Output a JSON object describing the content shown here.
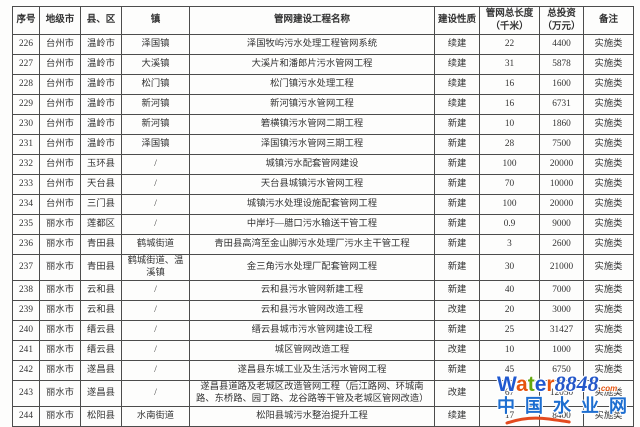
{
  "table": {
    "headers": [
      "序号",
      "地级市",
      "县、区",
      "镇",
      "管网建设工程名称",
      "建设性质",
      "管网总长度\n（千米）",
      "总投资\n（万元）",
      "备注"
    ],
    "rows": [
      [
        "226",
        "台州市",
        "温岭市",
        "泽国镇",
        "泽国牧屿污水处理工程管网系统",
        "续建",
        "22",
        "4400",
        "实施类"
      ],
      [
        "227",
        "台州市",
        "温岭市",
        "大溪镇",
        "大溪片和潘郎片污水管网工程",
        "续建",
        "31",
        "5878",
        "实施类"
      ],
      [
        "228",
        "台州市",
        "温岭市",
        "松门镇",
        "松门镇污水处理工程",
        "续建",
        "16",
        "1600",
        "实施类"
      ],
      [
        "229",
        "台州市",
        "温岭市",
        "新河镇",
        "新河镇污水管网工程",
        "续建",
        "16",
        "6731",
        "实施类"
      ],
      [
        "230",
        "台州市",
        "温岭市",
        "新河镇",
        "箬横镇污水管网二期工程",
        "新建",
        "10",
        "1860",
        "实施类"
      ],
      [
        "231",
        "台州市",
        "温岭市",
        "泽国镇",
        "泽国镇污水管网三期工程",
        "新建",
        "28",
        "7500",
        "实施类"
      ],
      [
        "232",
        "台州市",
        "玉环县",
        "/",
        "城镇污水配套管网建设",
        "新建",
        "100",
        "20000",
        "实施类"
      ],
      [
        "233",
        "台州市",
        "天台县",
        "/",
        "天台县城镇污水管网工程",
        "新建",
        "70",
        "10000",
        "实施类"
      ],
      [
        "234",
        "台州市",
        "三门县",
        "/",
        "城镇污水处理设施配套管网工程",
        "新建",
        "100",
        "20000",
        "实施类"
      ],
      [
        "235",
        "丽水市",
        "莲都区",
        "/",
        "中岸圩—腊口污水输送干管工程",
        "新建",
        "0.9",
        "9000",
        "实施类"
      ],
      [
        "236",
        "丽水市",
        "青田县",
        "鹤城街道",
        "青田县高湾至金山脚污水处理厂污水主干管工程",
        "新建",
        "3",
        "2600",
        "实施类"
      ],
      [
        "237",
        "丽水市",
        "青田县",
        "鹤城街道、温溪镇",
        "金三角污水处理厂配套管网工程",
        "新建",
        "30",
        "21000",
        "实施类"
      ],
      [
        "238",
        "丽水市",
        "云和县",
        "/",
        "云和县污水管网新建工程",
        "新建",
        "40",
        "7000",
        "实施类"
      ],
      [
        "239",
        "丽水市",
        "云和县",
        "/",
        "云和县污水管网改造工程",
        "改建",
        "20",
        "3000",
        "实施类"
      ],
      [
        "240",
        "丽水市",
        "缙云县",
        "/",
        "缙云县城市污水管网建设工程",
        "新建",
        "25",
        "31427",
        "实施类"
      ],
      [
        "241",
        "丽水市",
        "缙云县",
        "/",
        "城区管网改造工程",
        "改建",
        "10",
        "1000",
        "实施类"
      ],
      [
        "242",
        "丽水市",
        "遂昌县",
        "/",
        "遂昌县东城工业及生活污水管网工程",
        "新建",
        "45",
        "6750",
        "实施类"
      ],
      [
        "243",
        "丽水市",
        "遂昌县",
        "/",
        "遂昌县道路及老城区改造管网工程（后江路网、环城南路、东桥路、园丁路、龙谷路等干管及老城区管网改造）",
        "改建",
        "67",
        "12050",
        "实施类"
      ],
      [
        "244",
        "丽水市",
        "松阳县",
        "水南街道",
        "松阳县城污水整治提升工程",
        "续建",
        "17",
        "8400",
        "实施类"
      ]
    ]
  },
  "watermark": {
    "brand_letters": [
      {
        "ch": "W",
        "color": "#1f58cf"
      },
      {
        "ch": "a",
        "color": "#e6540e"
      },
      {
        "ch": "t",
        "color": "#63a80e"
      },
      {
        "ch": "e",
        "color": "#1f58cf"
      },
      {
        "ch": "r",
        "color": "#e6540e"
      }
    ],
    "brand_number": "8848",
    "brand_number_color": "#2457c9",
    "brand_suffix": ".com",
    "brand_suffix_color": "#e6540e",
    "subtitle": "中国水业网",
    "subtitle_color": "#1d6ed0",
    "swoosh_color": "#e34a1f"
  }
}
